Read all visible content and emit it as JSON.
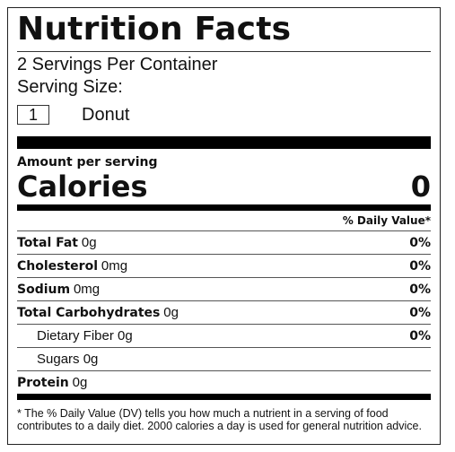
{
  "title": "Nutrition Facts",
  "servings_per_container": "2 Servings Per Container",
  "serving_size": {
    "label": "Serving Size:",
    "quantity": "1",
    "unit": "Donut"
  },
  "amount_per_serving": "Amount per serving",
  "calories": {
    "label": "Calories",
    "value": "0"
  },
  "daily_value_header": "% Daily Value*",
  "nutrients": [
    {
      "name": "Total Fat",
      "amount": "0g",
      "percent": "0%"
    },
    {
      "name": "Cholesterol",
      "amount": "0mg",
      "percent": "0%"
    },
    {
      "name": "Sodium",
      "amount": "0mg",
      "percent": "0%"
    },
    {
      "name": "Total Carbohydrates",
      "amount": "0g",
      "percent": "0%"
    },
    {
      "name": "Dietary Fiber",
      "amount": "0g",
      "percent": "0%"
    },
    {
      "name": "Sugars",
      "amount": "0g",
      "percent": ""
    },
    {
      "name": "Protein",
      "amount": "0g",
      "percent": ""
    }
  ],
  "footnote": "* The % Daily Value (DV) tells you how much a nutrient in a serving of food contributes to a daily diet. 2000 calories a day is used for general nutrition advice."
}
